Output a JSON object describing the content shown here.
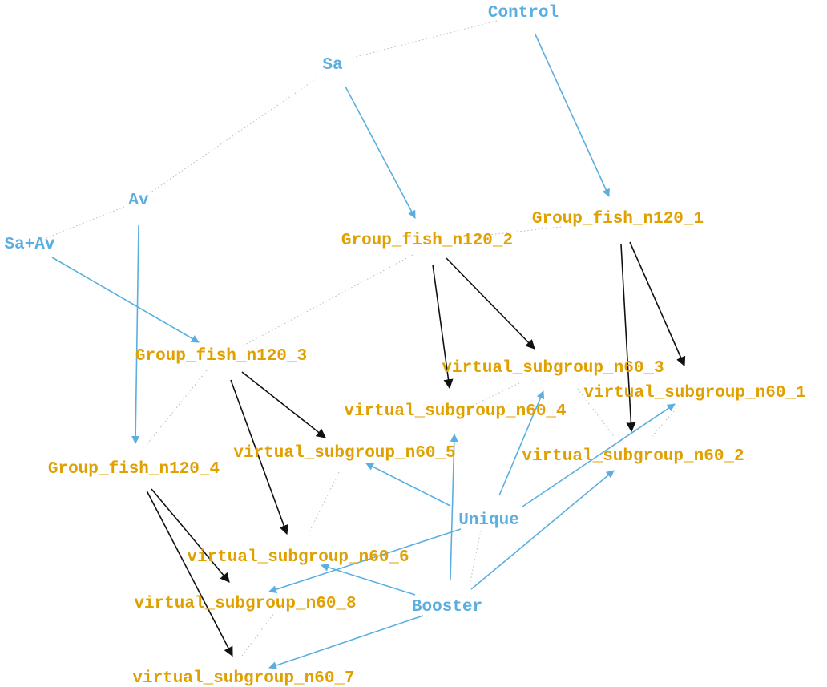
{
  "colors": {
    "blue_node": "#5aafe0",
    "orange_node": "#e0a000",
    "blue_edge": "#5aafe0",
    "black_edge": "#111111",
    "dotted_edge": "#bbbbbb"
  },
  "nodes": {
    "control": {
      "label": "Control",
      "kind": "blue"
    },
    "sa": {
      "label": "Sa",
      "kind": "blue"
    },
    "av": {
      "label": "Av",
      "kind": "blue"
    },
    "sa_av": {
      "label": "Sa+Av",
      "kind": "blue"
    },
    "unique": {
      "label": "Unique",
      "kind": "blue"
    },
    "booster": {
      "label": "Booster",
      "kind": "blue"
    },
    "g1": {
      "label": "Group_fish_n120_1",
      "kind": "orange"
    },
    "g2": {
      "label": "Group_fish_n120_2",
      "kind": "orange"
    },
    "g3": {
      "label": "Group_fish_n120_3",
      "kind": "orange"
    },
    "g4": {
      "label": "Group_fish_n120_4",
      "kind": "orange"
    },
    "v1": {
      "label": "virtual_subgroup_n60_1",
      "kind": "orange"
    },
    "v2": {
      "label": "virtual_subgroup_n60_2",
      "kind": "orange"
    },
    "v3": {
      "label": "virtual_subgroup_n60_3",
      "kind": "orange"
    },
    "v4": {
      "label": "virtual_subgroup_n60_4",
      "kind": "orange"
    },
    "v5": {
      "label": "virtual_subgroup_n60_5",
      "kind": "orange"
    },
    "v6": {
      "label": "virtual_subgroup_n60_6",
      "kind": "orange"
    },
    "v7": {
      "label": "virtual_subgroup_n60_7",
      "kind": "orange"
    },
    "v8": {
      "label": "virtual_subgroup_n60_8",
      "kind": "orange"
    }
  },
  "edges": [
    {
      "from": "control",
      "to": "g1",
      "style": "blue"
    },
    {
      "from": "sa",
      "to": "g2",
      "style": "blue"
    },
    {
      "from": "av",
      "to": "g4",
      "style": "blue"
    },
    {
      "from": "sa_av",
      "to": "g3",
      "style": "blue"
    },
    {
      "from": "g1",
      "to": "v1",
      "style": "black"
    },
    {
      "from": "g1",
      "to": "v2",
      "style": "black"
    },
    {
      "from": "g2",
      "to": "v3",
      "style": "black"
    },
    {
      "from": "g2",
      "to": "v4",
      "style": "black"
    },
    {
      "from": "g3",
      "to": "v5",
      "style": "black"
    },
    {
      "from": "g3",
      "to": "v6",
      "style": "black"
    },
    {
      "from": "g4",
      "to": "v7",
      "style": "black"
    },
    {
      "from": "g4",
      "to": "v8",
      "style": "black"
    },
    {
      "from": "unique",
      "to": "v1",
      "style": "blue"
    },
    {
      "from": "unique",
      "to": "v3",
      "style": "blue"
    },
    {
      "from": "unique",
      "to": "v5",
      "style": "blue"
    },
    {
      "from": "unique",
      "to": "v8",
      "style": "blue"
    },
    {
      "from": "booster",
      "to": "v2",
      "style": "blue"
    },
    {
      "from": "booster",
      "to": "v4",
      "style": "blue"
    },
    {
      "from": "booster",
      "to": "v6",
      "style": "blue"
    },
    {
      "from": "booster",
      "to": "v7",
      "style": "blue"
    },
    {
      "from": "control",
      "to": "sa",
      "style": "dotted"
    },
    {
      "from": "sa",
      "to": "av",
      "style": "dotted"
    },
    {
      "from": "av",
      "to": "sa_av",
      "style": "dotted"
    },
    {
      "from": "g1",
      "to": "g2",
      "style": "dotted"
    },
    {
      "from": "g2",
      "to": "g3",
      "style": "dotted"
    },
    {
      "from": "g3",
      "to": "g4",
      "style": "dotted"
    },
    {
      "from": "v1",
      "to": "v2",
      "style": "dotted"
    },
    {
      "from": "v2",
      "to": "v3",
      "style": "dotted"
    },
    {
      "from": "v3",
      "to": "v4",
      "style": "dotted"
    },
    {
      "from": "v5",
      "to": "v6",
      "style": "dotted"
    },
    {
      "from": "v7",
      "to": "v8",
      "style": "dotted"
    },
    {
      "from": "unique",
      "to": "booster",
      "style": "dotted"
    }
  ]
}
